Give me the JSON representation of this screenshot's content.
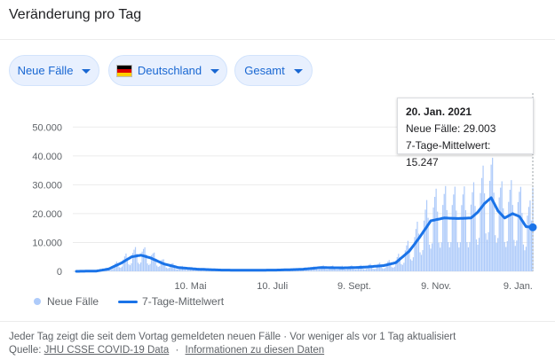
{
  "header": {
    "title": "Veränderung pro Tag"
  },
  "filters": {
    "metric": "Neue Fälle",
    "region": "Deutschland",
    "scope": "Gesamt"
  },
  "colors": {
    "bars": "#aecbfa",
    "line": "#1a73e8",
    "chip_bg": "#e8f0fe",
    "chip_text": "#1967d2",
    "flag": [
      "#000000",
      "#dd0000",
      "#ffce00"
    ]
  },
  "tooltip": {
    "date": "20. Jan. 2021",
    "cases": "Neue Fälle: 29.003",
    "avg": "7-Tage-Mittelwert: 15.247"
  },
  "legend": {
    "series_bars": "Neue Fälle",
    "series_line": "7-Tage-Mittelwert"
  },
  "footer": {
    "line1": "Jeder Tag zeigt die seit dem Vortag gemeldeten neuen Fälle · Vor weniger als vor 1 Tag aktualisiert",
    "source_prefix": "Quelle:",
    "source_link": "JHU CSSE COVID-19 Data",
    "info_link": "Informationen zu diesen Daten"
  },
  "chart_data": {
    "type": "bar",
    "x_start": "2020-02-15",
    "x_end": "2021-01-20",
    "ylim": [
      0,
      55000
    ],
    "yticks": [
      0,
      10000,
      20000,
      30000,
      40000,
      50000
    ],
    "ytick_labels": [
      "0",
      "10.000",
      "20.000",
      "30.000",
      "40.000",
      "50.000"
    ],
    "xticks": [
      "2020-05-10",
      "2020-07-10",
      "2020-09-09",
      "2020-11-09",
      "2021-01-09"
    ],
    "xtick_labels": [
      "10. Mai",
      "10. Juli",
      "9. Sept.",
      "9. Nov.",
      "9. Jan."
    ],
    "grid": true,
    "legend_position": "bottom-left",
    "series": [
      {
        "name": "7-Tage-Mittelwert",
        "type": "line",
        "points": [
          [
            "2020-02-15",
            0
          ],
          [
            "2020-03-01",
            100
          ],
          [
            "2020-03-10",
            800
          ],
          [
            "2020-03-20",
            3000
          ],
          [
            "2020-03-27",
            5000
          ],
          [
            "2020-04-03",
            5600
          ],
          [
            "2020-04-10",
            4700
          ],
          [
            "2020-04-20",
            2600
          ],
          [
            "2020-05-01",
            1300
          ],
          [
            "2020-05-15",
            750
          ],
          [
            "2020-06-01",
            450
          ],
          [
            "2020-06-15",
            380
          ],
          [
            "2020-07-01",
            400
          ],
          [
            "2020-07-15",
            450
          ],
          [
            "2020-08-01",
            700
          ],
          [
            "2020-08-15",
            1300
          ],
          [
            "2020-09-01",
            1200
          ],
          [
            "2020-09-15",
            1400
          ],
          [
            "2020-10-01",
            2000
          ],
          [
            "2020-10-10",
            3000
          ],
          [
            "2020-10-20",
            7000
          ],
          [
            "2020-10-28",
            12000
          ],
          [
            "2020-11-05",
            17500
          ],
          [
            "2020-11-15",
            18500
          ],
          [
            "2020-11-25",
            18300
          ],
          [
            "2020-12-05",
            18500
          ],
          [
            "2020-12-10",
            20500
          ],
          [
            "2020-12-15",
            23500
          ],
          [
            "2020-12-20",
            25500
          ],
          [
            "2020-12-25",
            21000
          ],
          [
            "2020-12-30",
            18500
          ],
          [
            "2021-01-05",
            20000
          ],
          [
            "2021-01-10",
            19000
          ],
          [
            "2021-01-15",
            15500
          ],
          [
            "2021-01-20",
            15247
          ]
        ]
      },
      {
        "name": "Neue Fälle",
        "type": "bar",
        "weekday_factor": [
          1.25,
          1.45,
          1.6,
          1.15,
          0.55,
          0.45,
          0.55
        ],
        "anchor_points": [
          [
            "2021-01-20",
            29003
          ]
        ]
      }
    ]
  }
}
